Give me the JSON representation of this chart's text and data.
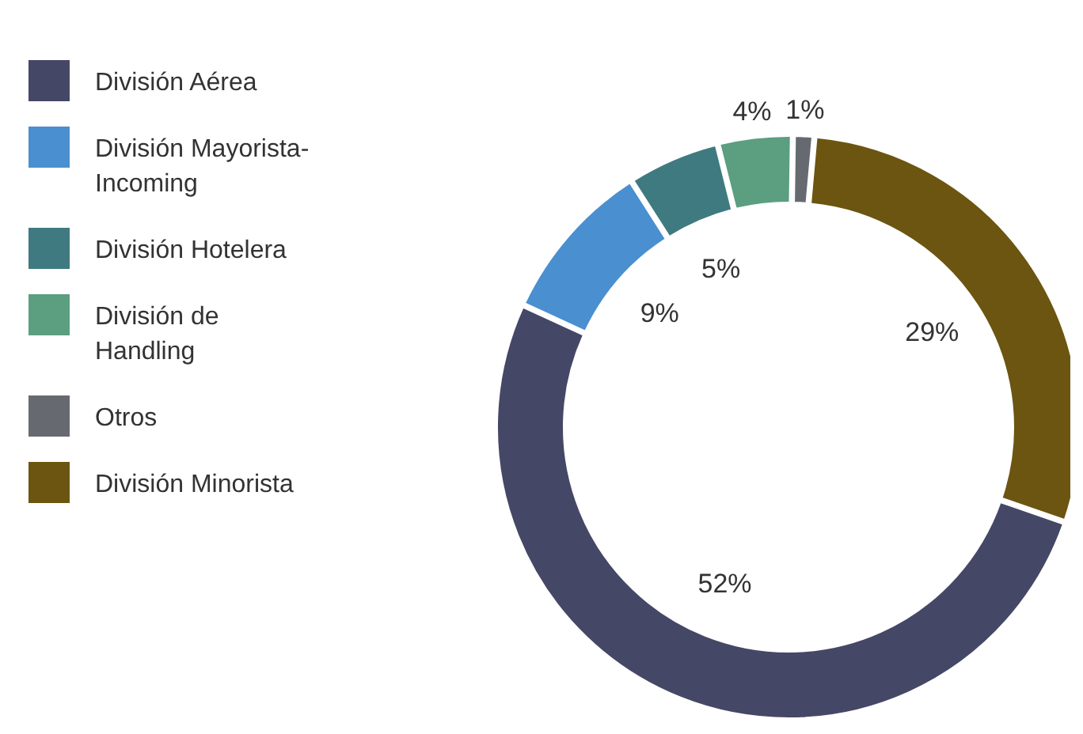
{
  "chart_data": {
    "type": "donut",
    "categories": [
      "División Aérea",
      "División Mayorista-Incoming",
      "División Hotelera",
      "División de Handling",
      "Otros",
      "División Minorista"
    ],
    "values": [
      52,
      9,
      5,
      4,
      1,
      29
    ],
    "value_labels": [
      "52%",
      "9%",
      "5%",
      "4%",
      "1%",
      "29%"
    ],
    "colors": [
      "#454766",
      "#4a8fd0",
      "#3f7a80",
      "#5b9e80",
      "#666a70",
      "#6b5510"
    ],
    "legend": "left"
  }
}
